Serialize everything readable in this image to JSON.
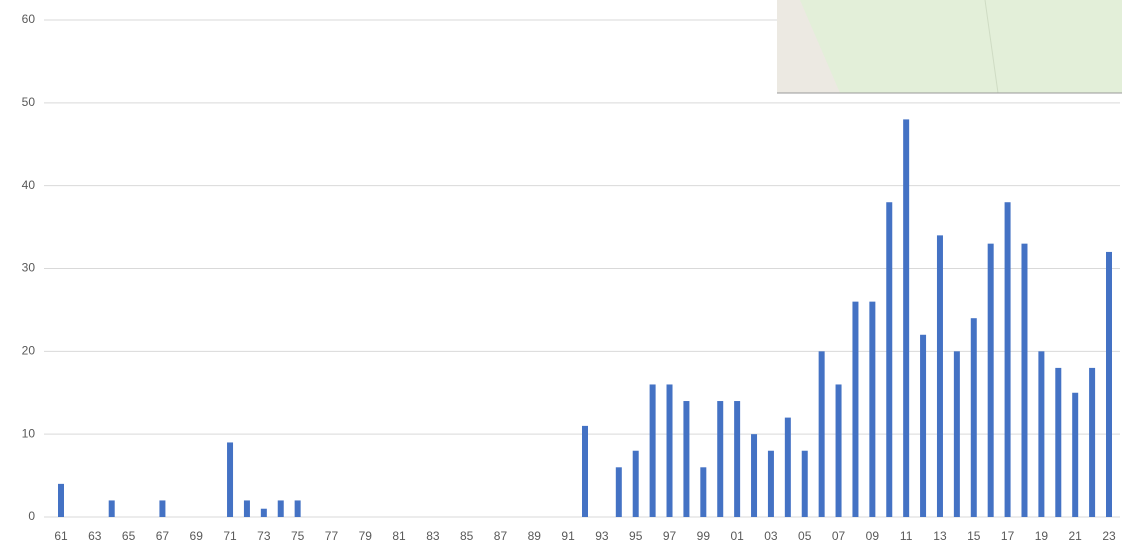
{
  "chart_data": {
    "type": "bar",
    "categories": [
      "61",
      null,
      "63",
      null,
      "65",
      null,
      "67",
      null,
      "69",
      null,
      "71",
      null,
      "73",
      null,
      "75",
      null,
      "77",
      null,
      "79",
      null,
      "81",
      null,
      "83",
      null,
      "85",
      null,
      "87",
      null,
      "89",
      null,
      "91",
      null,
      "93",
      null,
      "95",
      null,
      "97",
      null,
      "99",
      null,
      "01",
      null,
      "03",
      null,
      "05",
      null,
      "07",
      null,
      "09",
      null,
      "11",
      null,
      "13",
      null,
      "15",
      null,
      "17",
      null,
      "19",
      null,
      "21",
      null,
      "23"
    ],
    "values": [
      4,
      0,
      0,
      2,
      0,
      0,
      2,
      0,
      0,
      0,
      9,
      2,
      1,
      2,
      2,
      0,
      0,
      0,
      0,
      0,
      0,
      0,
      0,
      0,
      0,
      0,
      0,
      0,
      0,
      0,
      0,
      11,
      0,
      6,
      8,
      16,
      16,
      14,
      6,
      14,
      14,
      10,
      8,
      12,
      8,
      20,
      16,
      26,
      26,
      38,
      48,
      22,
      34,
      20,
      24,
      33,
      38,
      33,
      20,
      18,
      15,
      18,
      32
    ],
    "color": "#4472c4",
    "ylim": [
      0,
      60
    ],
    "yticks": [
      0,
      10,
      20,
      30,
      40,
      50,
      60
    ],
    "grid": true
  }
}
